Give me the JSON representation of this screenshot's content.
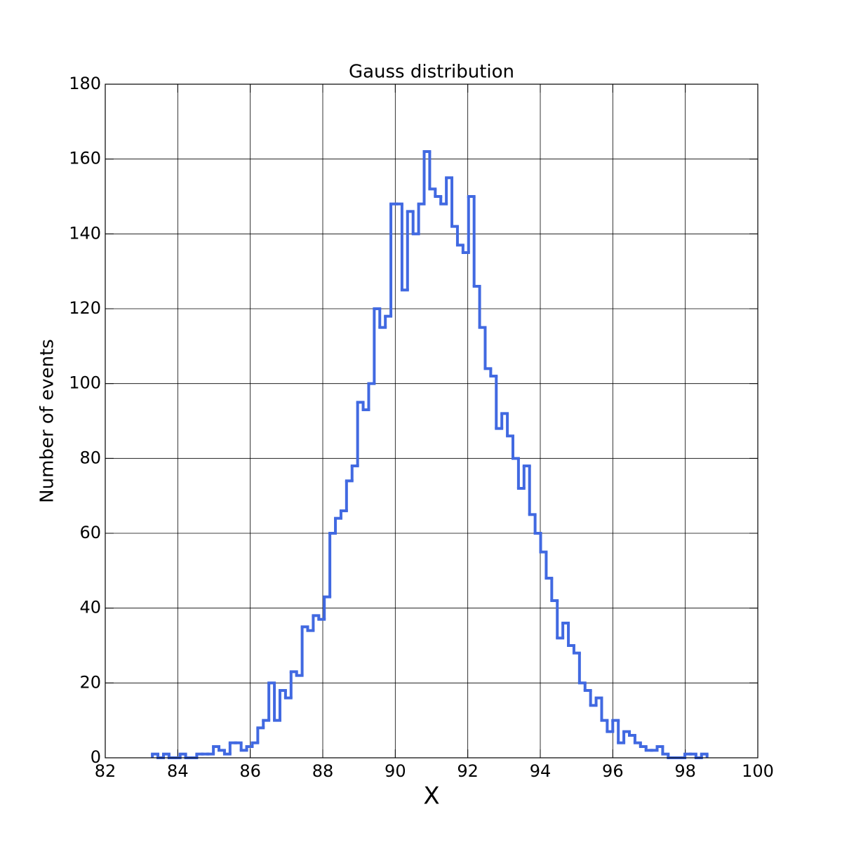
{
  "chart_data": {
    "type": "histogram",
    "title": "Gauss distribution",
    "x_label": "X",
    "y_label": "Number of events",
    "bins": [
      83.3,
      83.453,
      83.606,
      83.759,
      83.912,
      84.065,
      84.218,
      84.371,
      84.524,
      84.677,
      84.83,
      84.983,
      85.136,
      85.289,
      85.442,
      85.595,
      85.748,
      85.901,
      86.054,
      86.207,
      86.36,
      86.513,
      86.666,
      86.819,
      86.972,
      87.125,
      87.278,
      87.431,
      87.584,
      87.737,
      87.89,
      88.043,
      88.196,
      88.349,
      88.502,
      88.655,
      88.808,
      88.961,
      89.114,
      89.267,
      89.42,
      89.573,
      89.726,
      89.879,
      90.032,
      90.185,
      90.338,
      90.491,
      90.644,
      90.797,
      90.95,
      91.103,
      91.256,
      91.409,
      91.562,
      91.715,
      91.868,
      92.021,
      92.174,
      92.327,
      92.48,
      92.633,
      92.786,
      92.939,
      93.092,
      93.245,
      93.398,
      93.551,
      93.704,
      93.857,
      94.01,
      94.163,
      94.316,
      94.469,
      94.622,
      94.775,
      94.928,
      95.081,
      95.234,
      95.387,
      95.54,
      95.693,
      95.846,
      95.999,
      96.152,
      96.305,
      96.458,
      96.611,
      96.764,
      96.917,
      97.07,
      97.223,
      97.376,
      97.529,
      97.682,
      97.835,
      97.988,
      98.141,
      98.294,
      98.447,
      98.6
    ],
    "counts": [
      1,
      0,
      1,
      0,
      0,
      1,
      0,
      0,
      1,
      1,
      1,
      3,
      2,
      1,
      4,
      4,
      2,
      3,
      4,
      8,
      10,
      20,
      10,
      18,
      16,
      23,
      22,
      35,
      34,
      38,
      37,
      43,
      60,
      64,
      66,
      74,
      78,
      95,
      93,
      100,
      120,
      115,
      118,
      148,
      148,
      125,
      146,
      140,
      148,
      162,
      152,
      150,
      148,
      155,
      142,
      137,
      135,
      150,
      126,
      115,
      104,
      102,
      88,
      92,
      86,
      80,
      72,
      78,
      65,
      60,
      55,
      48,
      42,
      32,
      36,
      30,
      28,
      20,
      18,
      14,
      16,
      10,
      7,
      10,
      4,
      7,
      6,
      4,
      3,
      2,
      2,
      3,
      1,
      0,
      0,
      0,
      1,
      1,
      0,
      1
    ],
    "color": "#4169e1",
    "xlim": [
      82,
      100
    ],
    "xticks": [
      82,
      84,
      86,
      88,
      90,
      92,
      94,
      96,
      98,
      100
    ],
    "ylim": [
      0,
      180
    ],
    "yticks": [
      0,
      20,
      40,
      60,
      80,
      100,
      120,
      140,
      160,
      180
    ],
    "grid": true
  }
}
